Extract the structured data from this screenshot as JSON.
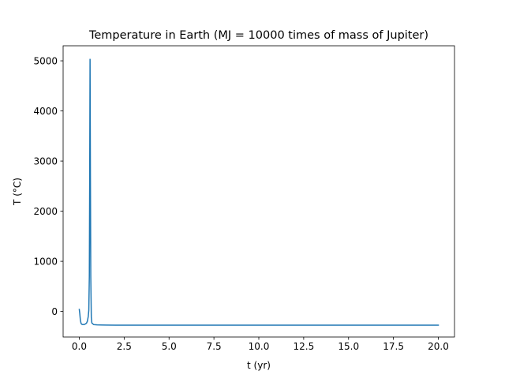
{
  "chart_data": {
    "type": "line",
    "title": "Temperature in Earth (MJ = 10000 times of mass of Jupiter)",
    "xlabel": "t (yr)",
    "ylabel": "T (°C)",
    "xlim": [
      -0.9,
      20.9
    ],
    "ylim": [
      -510,
      5300
    ],
    "x_ticks": [
      0.0,
      2.5,
      5.0,
      7.5,
      10.0,
      12.5,
      15.0,
      17.5,
      20.0
    ],
    "x_tick_labels": [
      "0.0",
      "2.5",
      "5.0",
      "7.5",
      "10.0",
      "12.5",
      "15.0",
      "17.5",
      "20.0"
    ],
    "y_ticks": [
      0,
      1000,
      2000,
      3000,
      4000,
      5000
    ],
    "y_tick_labels": [
      "0",
      "1000",
      "2000",
      "3000",
      "4000",
      "5000"
    ],
    "grid": false,
    "legend": "none",
    "series": [
      {
        "color": "#1f77b4",
        "x": [
          0.0,
          0.03,
          0.06,
          0.1,
          0.15,
          0.2,
          0.3,
          0.4,
          0.45,
          0.5,
          0.53,
          0.56,
          0.58,
          0.6,
          0.62,
          0.64,
          0.67,
          0.7,
          0.8,
          1.0,
          1.5,
          2.0,
          3.0,
          5.0,
          7.5,
          10.0,
          12.5,
          15.0,
          17.5,
          20.0
        ],
        "y": [
          40,
          -50,
          -170,
          -240,
          -258,
          -262,
          -258,
          -235,
          -195,
          -100,
          20,
          700,
          2600,
          5030,
          2700,
          700,
          -120,
          -230,
          -262,
          -268,
          -272,
          -273,
          -273,
          -273,
          -273,
          -273,
          -273,
          -273,
          -273,
          -273
        ]
      }
    ]
  }
}
